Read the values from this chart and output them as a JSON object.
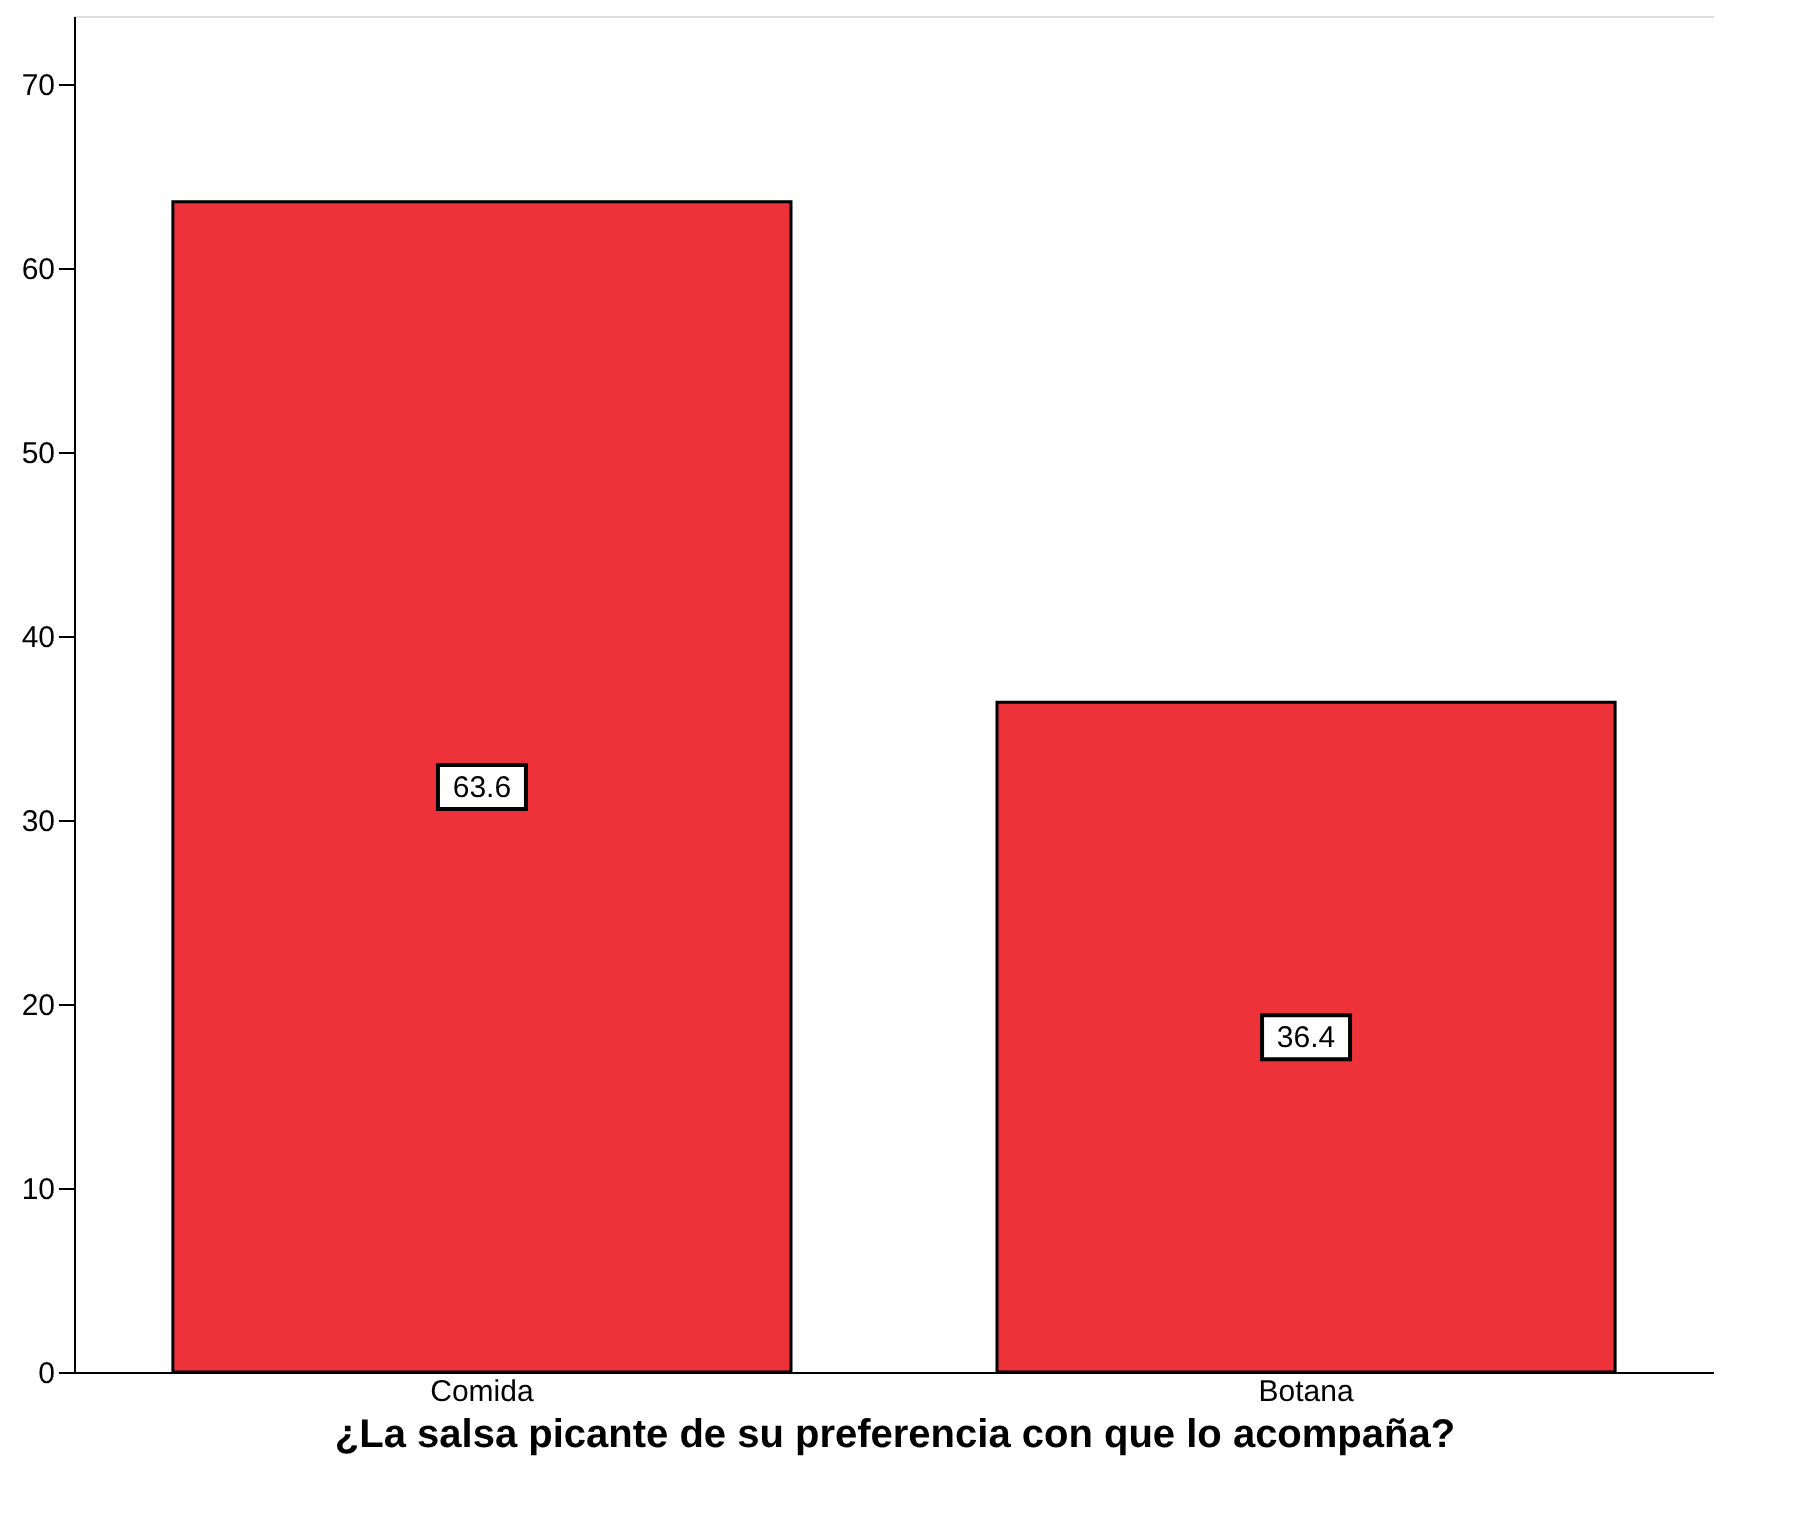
{
  "chart_data": {
    "type": "bar",
    "xlabel": "¿La salsa picante de su preferencia con que lo acompaña?",
    "categories": [
      "Comida",
      "Botana"
    ],
    "values": [
      63.6,
      36.4
    ],
    "color": "#ee3239",
    "ylim": [
      0,
      73.7
    ],
    "yticks": [
      0,
      10,
      20,
      30,
      40,
      50,
      60,
      70
    ],
    "data_labels": true,
    "grid": false
  }
}
